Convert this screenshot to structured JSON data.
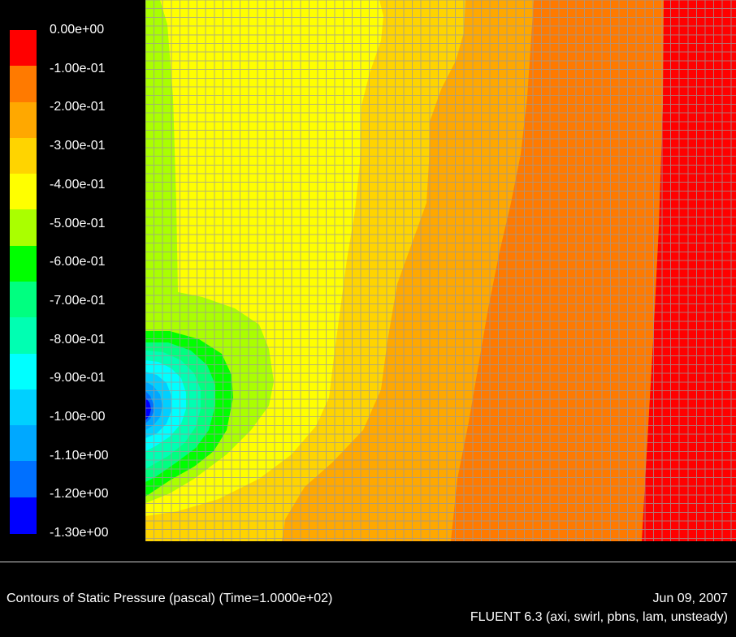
{
  "legend": {
    "levels": [
      {
        "label": "0.00e+00",
        "color": "#ff0000"
      },
      {
        "label": "-1.00e-01",
        "color": "#ff7a00"
      },
      {
        "label": "-2.00e-01",
        "color": "#ffa800"
      },
      {
        "label": "-3.00e-01",
        "color": "#ffd400"
      },
      {
        "label": "-4.00e-01",
        "color": "#ffff00"
      },
      {
        "label": "-5.00e-01",
        "color": "#aaff00"
      },
      {
        "label": "-6.00e-01",
        "color": "#00ff00"
      },
      {
        "label": "-7.00e-01",
        "color": "#00ff80"
      },
      {
        "label": "-8.00e-01",
        "color": "#00ffb2"
      },
      {
        "label": "-9.00e-01",
        "color": "#00ffff"
      },
      {
        "label": "-1.00e-00",
        "color": "#00d0ff"
      },
      {
        "label": "-1.10e+00",
        "color": "#00a8ff"
      },
      {
        "label": "-1.20e+00",
        "color": "#0070ff"
      },
      {
        "label": "-1.30e+00",
        "color": "#0000ff"
      }
    ]
  },
  "footer": {
    "title": "Contours of Static Pressure (pascal)  (Time=1.0000e+02)",
    "date": "Jun 09, 2007",
    "solver": "FLUENT 6.3 (axi, swirl, pbns, lam, unsteady)"
  },
  "colors": {
    "background": "#000000",
    "mesh_line": "#9a9a9a"
  }
}
